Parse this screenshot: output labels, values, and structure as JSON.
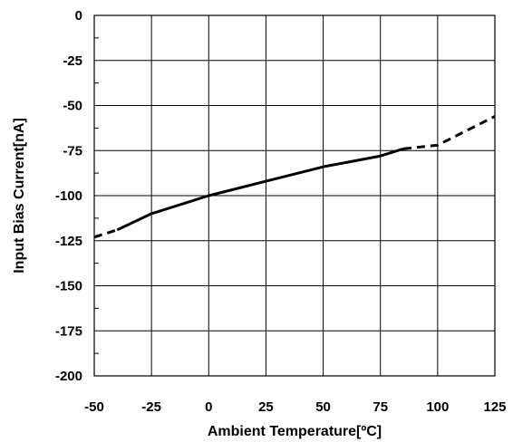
{
  "chart_data": {
    "type": "line",
    "title": "",
    "xlabel": "Ambient Temperature[ºC]",
    "ylabel": "Input Bias Current[nA]",
    "xlim": [
      -50,
      125
    ],
    "ylim": [
      -200,
      0
    ],
    "xticks": [
      -50,
      -25,
      0,
      25,
      50,
      75,
      100,
      125
    ],
    "yticks": [
      0,
      -25,
      -50,
      -75,
      -100,
      -125,
      -150,
      -175,
      -200
    ],
    "grid": true,
    "legend": "none",
    "line_color": "#000000",
    "series": [
      {
        "style": "dashed",
        "x": [
          -50,
          -40
        ],
        "y": [
          -123,
          -119
        ]
      },
      {
        "style": "solid",
        "x": [
          -40,
          -25,
          0,
          25,
          50,
          75,
          85
        ],
        "y": [
          -119,
          -110,
          -100,
          -92,
          -84,
          -78,
          -74
        ]
      },
      {
        "style": "dashed",
        "x": [
          85,
          100,
          125
        ],
        "y": [
          -74,
          -72,
          -56
        ]
      }
    ]
  }
}
